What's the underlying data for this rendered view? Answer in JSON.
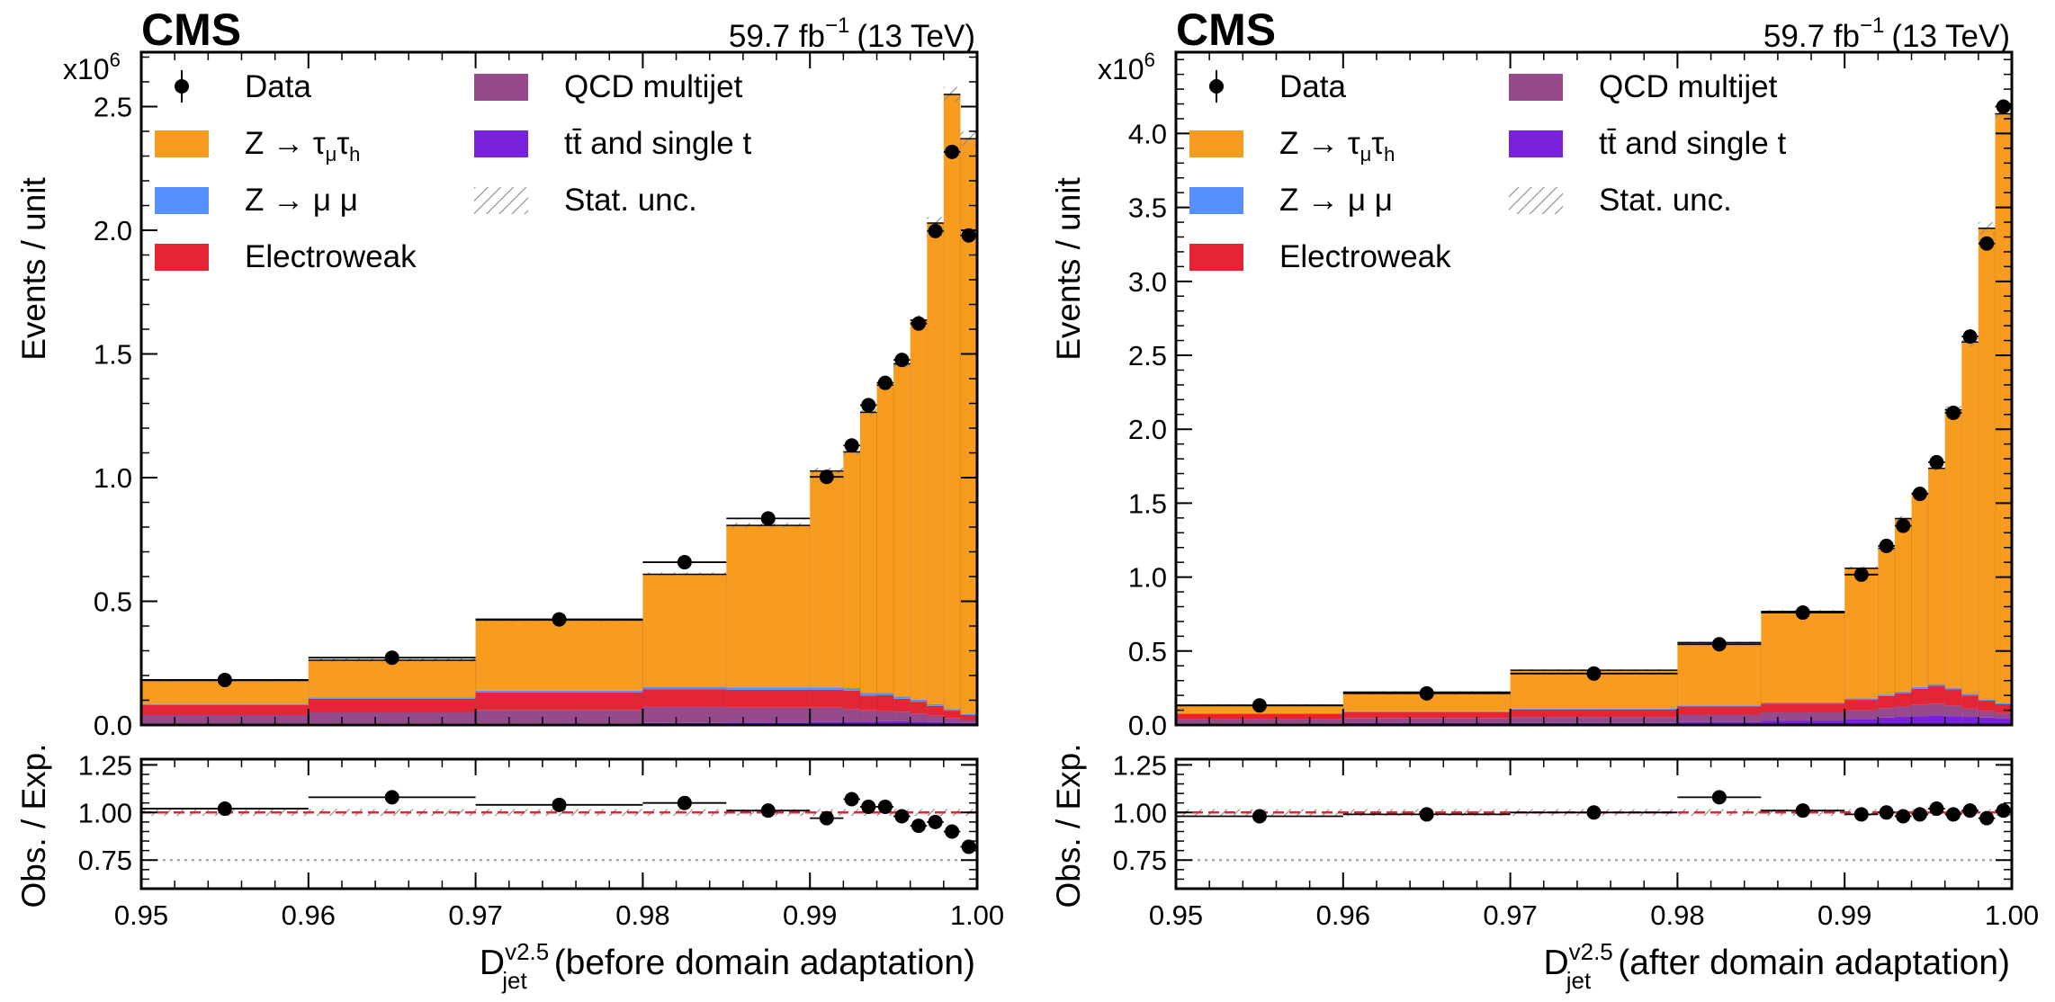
{
  "colors": {
    "ztautau": "#f89c20",
    "zmumu": "#5790fc",
    "ewk": "#e42536",
    "qcd": "#964a8b",
    "ttbar": "#7a21dd",
    "ratio_line": "#e42536",
    "unc_hatch": "#8a8a8a"
  },
  "x_ticks": [
    "0.95",
    "0.96",
    "0.97",
    "0.98",
    "0.99",
    "1.00"
  ],
  "ratio_ticks": [
    "0.75",
    "1.00",
    "1.25"
  ],
  "legend": {
    "data": "Data",
    "ztautau_pre": "Z → τ",
    "ztautau_sub1": "μ",
    "ztautau_mid": "τ",
    "ztautau_sub2": "h",
    "zmumu": "Z → μ μ",
    "ewk": "Electroweak",
    "qcd": "QCD multijet",
    "ttbar_pre": "t",
    "ttbar_bar": "t̄",
    "ttbar_post": " and single t",
    "stat": "Stat. unc."
  },
  "chart_data": [
    {
      "type": "bar",
      "subtype": "stacked-histogram-with-ratio",
      "panel": "left",
      "experiment_label": "CMS",
      "lumi_label": "59.7 fb",
      "lumi_exp": "−1",
      "energy_label": "(13 TeV)",
      "ylabel": "Events / unit",
      "yscale_label": "x10",
      "yscale_exp": "6",
      "ratio_ylabel": "Obs. / Exp.",
      "xlabel_main": "D",
      "xlabel_sup": "v2.5",
      "xlabel_sub": "jet",
      "xlabel_suffix": "(before domain adaptation)",
      "xlim": [
        0.95,
        1.0
      ],
      "ylim": [
        0,
        2.72
      ],
      "y_ticks": [
        "0.0",
        "0.5",
        "1.0",
        "1.5",
        "2.0",
        "2.5"
      ],
      "ratio_ylim": [
        0.6,
        1.28
      ],
      "bin_edges": [
        0.95,
        0.96,
        0.97,
        0.98,
        0.985,
        0.99,
        0.992,
        0.993,
        0.994,
        0.995,
        0.996,
        0.997,
        0.998,
        0.999,
        1.0
      ],
      "series": [
        {
          "name": "Z → τμτh",
          "values": [
            0.095,
            0.15,
            0.285,
            0.455,
            0.655,
            0.875,
            0.955,
            1.135,
            1.245,
            1.345,
            1.535,
            1.945,
            2.485,
            2.325
          ]
        },
        {
          "name": "Z → μμ",
          "values": [
            0.005,
            0.006,
            0.008,
            0.009,
            0.01,
            0.01,
            0.01,
            0.01,
            0.009,
            0.009,
            0.008,
            0.007,
            0.006,
            0.005
          ]
        },
        {
          "name": "Electroweak",
          "values": [
            0.04,
            0.055,
            0.07,
            0.072,
            0.072,
            0.072,
            0.075,
            0.06,
            0.065,
            0.052,
            0.048,
            0.04,
            0.03,
            0.02
          ]
        },
        {
          "name": "QCD multijet",
          "values": [
            0.035,
            0.045,
            0.055,
            0.065,
            0.06,
            0.058,
            0.05,
            0.045,
            0.04,
            0.038,
            0.032,
            0.025,
            0.018,
            0.012
          ]
        },
        {
          "name": "tt̄ and single t",
          "values": [
            0.005,
            0.006,
            0.006,
            0.008,
            0.01,
            0.012,
            0.014,
            0.014,
            0.015,
            0.016,
            0.014,
            0.012,
            0.01,
            0.008
          ]
        }
      ],
      "data_values": [
        0.182,
        0.272,
        0.427,
        0.658,
        0.835,
        1.003,
        1.13,
        1.293,
        1.383,
        1.476,
        1.623,
        1.997,
        2.317,
        1.979
      ],
      "ratio_values": [
        1.02,
        1.08,
        1.04,
        1.05,
        1.01,
        0.97,
        1.07,
        1.03,
        1.03,
        0.98,
        0.93,
        0.95,
        0.9,
        0.82
      ]
    },
    {
      "type": "bar",
      "subtype": "stacked-histogram-with-ratio",
      "panel": "right",
      "experiment_label": "CMS",
      "lumi_label": "59.7 fb",
      "lumi_exp": "−1",
      "energy_label": "(13 TeV)",
      "ylabel": "Events / unit",
      "yscale_label": "x10",
      "yscale_exp": "6",
      "ratio_ylabel": "Obs. / Exp.",
      "xlabel_main": "D",
      "xlabel_sup": "v2.5",
      "xlabel_sub": "jet",
      "xlabel_suffix": "(after domain adaptation)",
      "xlim": [
        0.95,
        1.0
      ],
      "ylim": [
        0,
        4.55
      ],
      "y_ticks": [
        "0.0",
        "0.5",
        "1.0",
        "1.5",
        "2.0",
        "2.5",
        "3.0",
        "3.5",
        "4.0"
      ],
      "ratio_ylim": [
        0.6,
        1.28
      ],
      "bin_edges": [
        0.95,
        0.96,
        0.97,
        0.98,
        0.985,
        0.99,
        0.992,
        0.993,
        0.994,
        0.995,
        0.996,
        0.997,
        0.998,
        0.999,
        1.0
      ],
      "series": [
        {
          "name": "Z → τμτh",
          "values": [
            0.055,
            0.13,
            0.26,
            0.425,
            0.615,
            0.88,
            0.99,
            1.17,
            1.31,
            1.46,
            1.88,
            2.38,
            3.185,
            3.985
          ]
        },
        {
          "name": "Z → μμ",
          "values": [
            0.004,
            0.005,
            0.006,
            0.007,
            0.008,
            0.01,
            0.01,
            0.011,
            0.011,
            0.011,
            0.011,
            0.01,
            0.009,
            0.008
          ]
        },
        {
          "name": "Electroweak",
          "values": [
            0.035,
            0.04,
            0.05,
            0.055,
            0.06,
            0.07,
            0.08,
            0.09,
            0.11,
            0.12,
            0.11,
            0.09,
            0.07,
            0.06
          ]
        },
        {
          "name": "QCD multijet",
          "values": [
            0.03,
            0.035,
            0.04,
            0.05,
            0.055,
            0.06,
            0.065,
            0.07,
            0.075,
            0.08,
            0.07,
            0.055,
            0.045,
            0.035
          ]
        },
        {
          "name": "tt̄ and single t",
          "values": [
            0.01,
            0.012,
            0.014,
            0.02,
            0.03,
            0.04,
            0.05,
            0.055,
            0.06,
            0.065,
            0.06,
            0.055,
            0.05,
            0.045
          ]
        }
      ],
      "data_values": [
        0.132,
        0.214,
        0.348,
        0.546,
        0.76,
        1.017,
        1.211,
        1.347,
        1.563,
        1.777,
        2.111,
        2.627,
        3.256,
        4.182
      ],
      "ratio_values": [
        0.98,
        0.99,
        1.0,
        1.08,
        1.01,
        0.99,
        1.0,
        0.98,
        0.99,
        1.02,
        0.99,
        1.01,
        0.97,
        1.01
      ]
    }
  ]
}
